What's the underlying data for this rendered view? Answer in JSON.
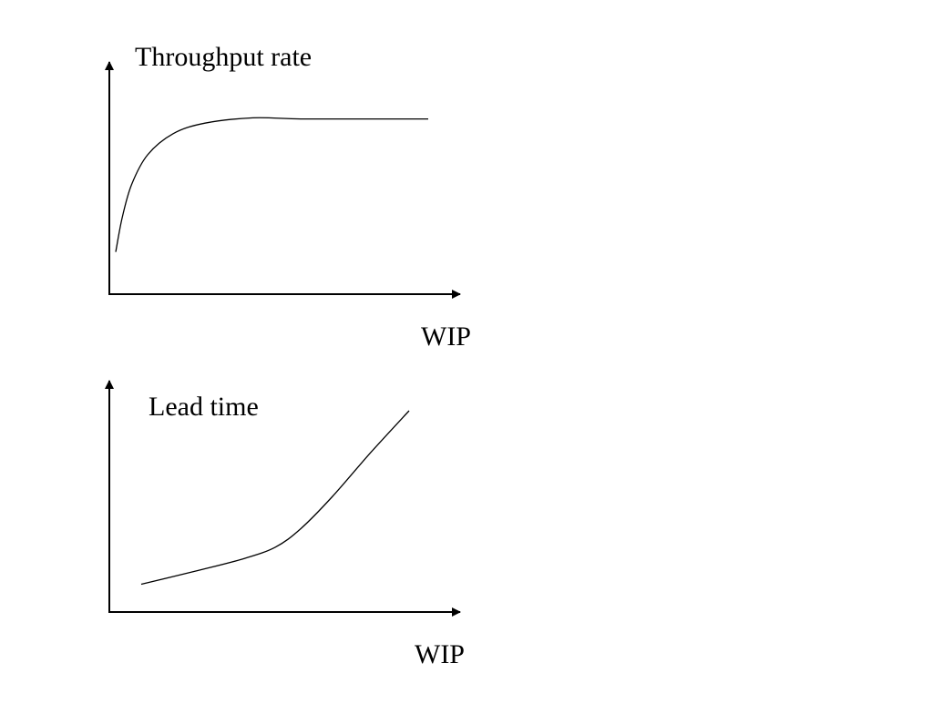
{
  "chart_data": [
    {
      "type": "line",
      "title": "",
      "xlabel": "WIP",
      "ylabel": "Throughput rate",
      "grid": false,
      "legend": "none",
      "x": [
        0.02,
        0.04,
        0.07,
        0.12,
        0.2,
        0.3,
        0.45,
        0.6,
        0.8,
        1.0
      ],
      "series": [
        {
          "values": [
            0.2,
            0.36,
            0.52,
            0.66,
            0.76,
            0.81,
            0.835,
            0.83,
            0.83,
            0.83
          ]
        }
      ],
      "xlim": [
        0,
        1.1
      ],
      "ylim": [
        0,
        1.1
      ]
    },
    {
      "type": "line",
      "title": "",
      "xlabel": "WIP",
      "ylabel": "Lead time",
      "grid": false,
      "legend": "none",
      "x": [
        0.1,
        0.28,
        0.42,
        0.52,
        0.6,
        0.7,
        0.82,
        0.94
      ],
      "series": [
        {
          "values": [
            0.12,
            0.18,
            0.23,
            0.28,
            0.36,
            0.5,
            0.69,
            0.87
          ]
        }
      ],
      "xlim": [
        0,
        1.1
      ],
      "ylim": [
        0,
        1.0
      ]
    }
  ]
}
